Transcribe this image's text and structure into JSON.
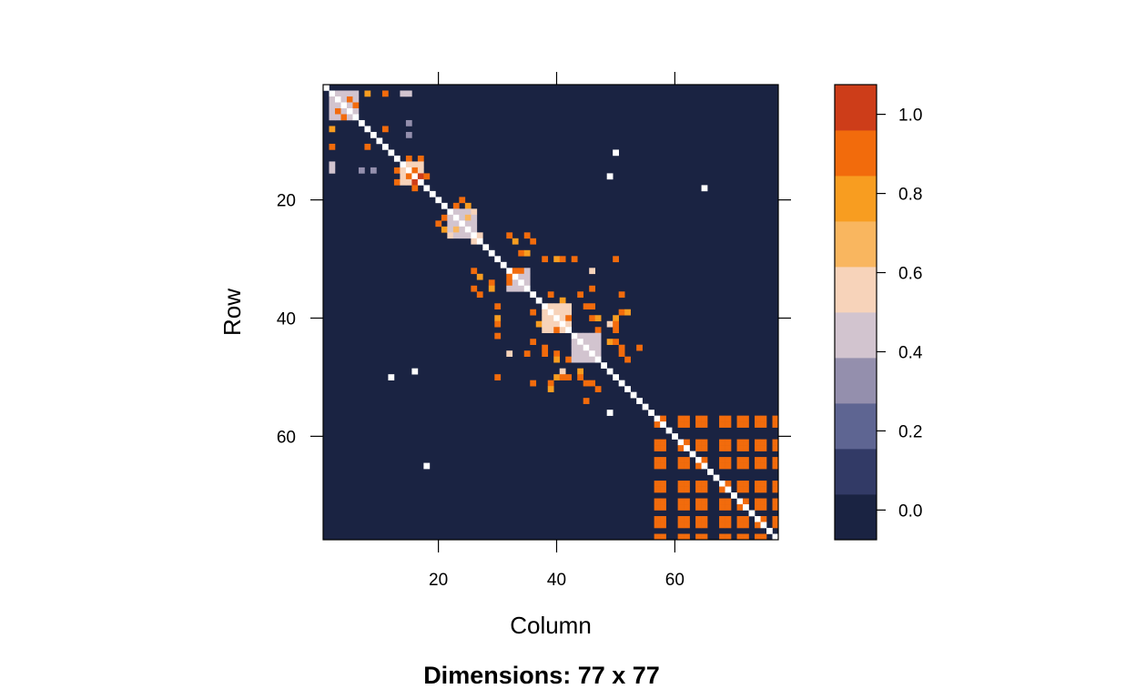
{
  "chart_data": {
    "type": "heatmap",
    "title": "Dimensions: 77 x 77",
    "xlabel": "Column",
    "ylabel": "Row",
    "n_rows": 77,
    "n_cols": 77,
    "x_ticks": [
      "20",
      "40",
      "60"
    ],
    "y_ticks": [
      "20",
      "40",
      "60"
    ],
    "x_tick_values": [
      20,
      40,
      60
    ],
    "y_tick_values": [
      20,
      40,
      60
    ],
    "colorbar": {
      "range": [
        -0.075,
        1.075
      ],
      "tick_values": [
        0.0,
        0.2,
        0.4,
        0.6,
        0.8,
        1.0
      ],
      "tick_labels": [
        "0.0",
        "0.2",
        "0.4",
        "0.6",
        "0.8",
        "1.0"
      ],
      "levels": [
        -0.075,
        0.04,
        0.155,
        0.27,
        0.385,
        0.5,
        0.615,
        0.73,
        0.845,
        0.96,
        1.075
      ],
      "colors": [
        "#1a2342",
        "#323a66",
        "#5e6592",
        "#948fad",
        "#d2c4cf",
        "#f7d3ba",
        "#f9b65f",
        "#f89d20",
        "#f26b0c",
        "#cd3d19"
      ]
    },
    "background_value": 0.0,
    "diagonal_value": "white",
    "blocks": [
      {
        "rows": [
          2,
          3,
          4,
          5,
          6
        ],
        "cols": [
          2,
          3,
          4,
          5,
          6
        ],
        "value": 0.45
      },
      {
        "rows": [
          14,
          15,
          16,
          17
        ],
        "cols": [
          14,
          15,
          16,
          17
        ],
        "value": 0.55
      },
      {
        "rows": [
          22,
          23,
          24,
          25,
          26
        ],
        "cols": [
          22,
          23,
          24,
          25,
          26
        ],
        "value": 0.45
      },
      {
        "rows": [
          32,
          33,
          34,
          35
        ],
        "cols": [
          32,
          33,
          34,
          35
        ],
        "value": 0.45
      },
      {
        "rows": [
          38,
          39,
          40,
          41,
          42
        ],
        "cols": [
          38,
          39,
          40,
          41,
          42
        ],
        "value": 0.5
      },
      {
        "rows": [
          43,
          44,
          45,
          46,
          47
        ],
        "cols": [
          43,
          44,
          45,
          46,
          47
        ],
        "value": 0.45
      },
      {
        "rows": [
          57,
          58,
          61,
          62,
          64,
          65,
          68,
          69,
          71,
          72,
          74,
          75,
          77
        ],
        "cols": [
          57,
          58,
          61,
          62,
          64,
          65,
          68,
          69,
          71,
          72,
          74,
          75,
          77
        ],
        "value": 0.85
      }
    ],
    "cells": [
      {
        "r": 2,
        "c": 8,
        "v": 0.8
      },
      {
        "r": 2,
        "c": 11,
        "v": 0.9
      },
      {
        "r": 2,
        "c": 14,
        "v": 0.45
      },
      {
        "r": 4,
        "c": 6,
        "v": 0.85
      },
      {
        "r": 5,
        "c": 3,
        "v": 0.85
      },
      {
        "r": 8,
        "c": 2,
        "v": 0.8
      },
      {
        "r": 8,
        "c": 11,
        "v": 0.9
      },
      {
        "r": 11,
        "c": 2,
        "v": 0.9
      },
      {
        "r": 11,
        "c": 8,
        "v": 0.9
      },
      {
        "r": 15,
        "c": 2,
        "v": 0.45
      },
      {
        "r": 15,
        "c": 7,
        "v": 0.3
      },
      {
        "r": 15,
        "c": 9,
        "v": 0.3
      },
      {
        "r": 15,
        "c": 13,
        "v": 0.85
      },
      {
        "r": 16,
        "c": 15,
        "v": 0.95
      },
      {
        "r": 17,
        "c": 13,
        "v": 0.95
      },
      {
        "r": 16,
        "c": 17,
        "v": 1.0
      },
      {
        "r": 18,
        "c": 16,
        "v": 0.9
      },
      {
        "r": 20,
        "c": 24,
        "v": 0.9
      },
      {
        "r": 21,
        "c": 25,
        "v": 0.8
      },
      {
        "r": 22,
        "c": 26,
        "v": 0.6
      },
      {
        "r": 23,
        "c": 21,
        "v": 0.85
      },
      {
        "r": 24,
        "c": 20,
        "v": 0.9
      },
      {
        "r": 25,
        "c": 23,
        "v": 0.7
      },
      {
        "r": 26,
        "c": 27,
        "v": 0.55
      },
      {
        "r": 27,
        "c": 33,
        "v": 0.8
      },
      {
        "r": 27,
        "c": 36,
        "v": 0.85
      },
      {
        "r": 29,
        "c": 35,
        "v": 0.8
      },
      {
        "r": 30,
        "c": 38,
        "v": 0.85
      },
      {
        "r": 30,
        "c": 40,
        "v": 0.8
      },
      {
        "r": 30,
        "c": 50,
        "v": 0.85
      },
      {
        "r": 32,
        "c": 26,
        "v": 0.9
      },
      {
        "r": 32,
        "c": 33,
        "v": 0.9
      },
      {
        "r": 32,
        "c": 46,
        "v": 0.6
      },
      {
        "r": 34,
        "c": 29,
        "v": 0.85
      },
      {
        "r": 34,
        "c": 32,
        "v": 0.9
      },
      {
        "r": 35,
        "c": 26,
        "v": 0.9
      },
      {
        "r": 36,
        "c": 44,
        "v": 0.85
      },
      {
        "r": 36,
        "c": 51,
        "v": 0.85
      },
      {
        "r": 37,
        "c": 41,
        "v": 0.8
      },
      {
        "r": 38,
        "c": 45,
        "v": 0.9
      },
      {
        "r": 39,
        "c": 36,
        "v": 0.85
      },
      {
        "r": 40,
        "c": 42,
        "v": 0.85
      },
      {
        "r": 40,
        "c": 46,
        "v": 0.85
      },
      {
        "r": 40,
        "c": 50,
        "v": 0.8
      },
      {
        "r": 41,
        "c": 30,
        "v": 0.85
      },
      {
        "r": 42,
        "c": 50,
        "v": 0.9
      },
      {
        "r": 43,
        "c": 30,
        "v": 0.85
      },
      {
        "r": 44,
        "c": 49,
        "v": 0.8
      },
      {
        "r": 45,
        "c": 51,
        "v": 0.85
      },
      {
        "r": 46,
        "c": 35,
        "v": 0.85
      },
      {
        "r": 46,
        "c": 38,
        "v": 0.85
      },
      {
        "r": 47,
        "c": 42,
        "v": 0.9
      },
      {
        "r": 47,
        "c": 40,
        "v": 0.8
      },
      {
        "r": 49,
        "c": 41,
        "v": 0.6
      },
      {
        "r": 50,
        "c": 30,
        "v": 0.85
      },
      {
        "r": 50,
        "c": 41,
        "v": 0.85
      },
      {
        "r": 50,
        "c": 44,
        "v": 0.85
      },
      {
        "r": 51,
        "c": 39,
        "v": 0.85
      },
      {
        "r": 51,
        "c": 46,
        "v": 0.85
      },
      {
        "r": 52,
        "c": 39,
        "v": 0.8
      },
      {
        "r": 52,
        "c": 47,
        "v": 0.85
      },
      {
        "r": 54,
        "c": 45,
        "v": 0.85
      }
    ],
    "white_cells": [
      {
        "r": 12,
        "c": 50
      },
      {
        "r": 16,
        "c": 49
      },
      {
        "r": 18,
        "c": 65
      },
      {
        "r": 49,
        "c": 16
      },
      {
        "r": 50,
        "c": 12
      },
      {
        "r": 56,
        "c": 49
      },
      {
        "r": 65,
        "c": 18
      }
    ]
  }
}
